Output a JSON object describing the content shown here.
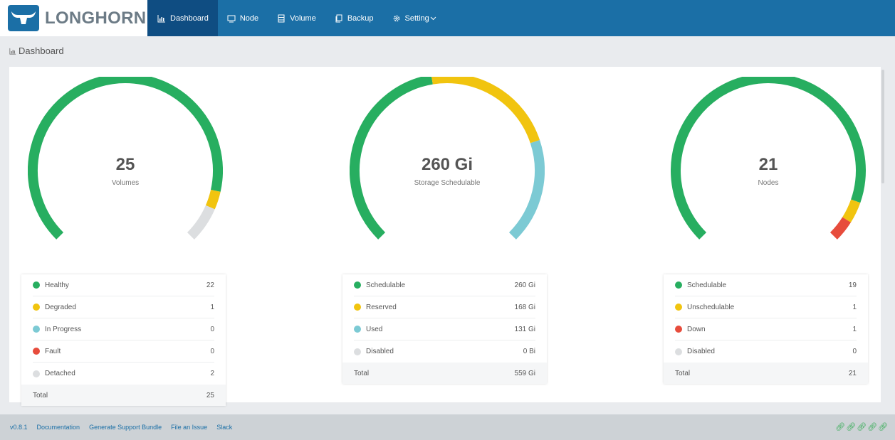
{
  "app": {
    "name": "LONGHORN"
  },
  "nav": [
    {
      "label": "Dashboard",
      "icon": "chart-icon"
    },
    {
      "label": "Node",
      "icon": "monitor-icon"
    },
    {
      "label": "Volume",
      "icon": "storage-icon"
    },
    {
      "label": "Backup",
      "icon": "copy-icon"
    },
    {
      "label": "Setting",
      "icon": "gear-icon"
    }
  ],
  "page_title": "Dashboard",
  "colors": {
    "green": "#27ae60",
    "yellow": "#f1c40f",
    "cyan": "#7ccad4",
    "red": "#e74c3c",
    "gray": "#dcdee0",
    "brand": "#1b6fa6"
  },
  "gauges": [
    {
      "value": "25",
      "label": "Volumes",
      "segments": [
        {
          "value": 22,
          "color": "#27ae60"
        },
        {
          "value": 1,
          "color": "#f1c40f"
        },
        {
          "value": 2,
          "color": "#dcdee0"
        }
      ],
      "total": 25
    },
    {
      "value": "260 Gi",
      "label": "Storage Schedulable",
      "segments": [
        {
          "value": 260,
          "color": "#27ae60"
        },
        {
          "value": 168,
          "color": "#f1c40f"
        },
        {
          "value": 131,
          "color": "#7ccad4"
        }
      ],
      "total": 559
    },
    {
      "value": "21",
      "label": "Nodes",
      "segments": [
        {
          "value": 19,
          "color": "#27ae60"
        },
        {
          "value": 1,
          "color": "#f1c40f"
        },
        {
          "value": 1,
          "color": "#e74c3c"
        }
      ],
      "total": 21
    }
  ],
  "legends": [
    {
      "rows": [
        {
          "label": "Healthy",
          "value": "22",
          "color": "#27ae60"
        },
        {
          "label": "Degraded",
          "value": "1",
          "color": "#f1c40f"
        },
        {
          "label": "In Progress",
          "value": "0",
          "color": "#7ccad4"
        },
        {
          "label": "Fault",
          "value": "0",
          "color": "#e74c3c"
        },
        {
          "label": "Detached",
          "value": "2",
          "color": "#dcdee0"
        }
      ],
      "total_label": "Total",
      "total_value": "25"
    },
    {
      "rows": [
        {
          "label": "Schedulable",
          "value": "260 Gi",
          "color": "#27ae60"
        },
        {
          "label": "Reserved",
          "value": "168 Gi",
          "color": "#f1c40f"
        },
        {
          "label": "Used",
          "value": "131 Gi",
          "color": "#7ccad4"
        },
        {
          "label": "Disabled",
          "value": "0 Bi",
          "color": "#dcdee0"
        }
      ],
      "total_label": "Total",
      "total_value": "559 Gi"
    },
    {
      "rows": [
        {
          "label": "Schedulable",
          "value": "19",
          "color": "#27ae60"
        },
        {
          "label": "Unschedulable",
          "value": "1",
          "color": "#f1c40f"
        },
        {
          "label": "Down",
          "value": "1",
          "color": "#e74c3c"
        },
        {
          "label": "Disabled",
          "value": "0",
          "color": "#dcdee0"
        }
      ],
      "total_label": "Total",
      "total_value": "21"
    }
  ],
  "footer": {
    "links": [
      "v0.8.1",
      "Documentation",
      "Generate Support Bundle",
      "File an Issue",
      "Slack"
    ],
    "status_icons": [
      "link-icon",
      "link-icon",
      "link-icon",
      "link-icon",
      "link-icon"
    ]
  }
}
